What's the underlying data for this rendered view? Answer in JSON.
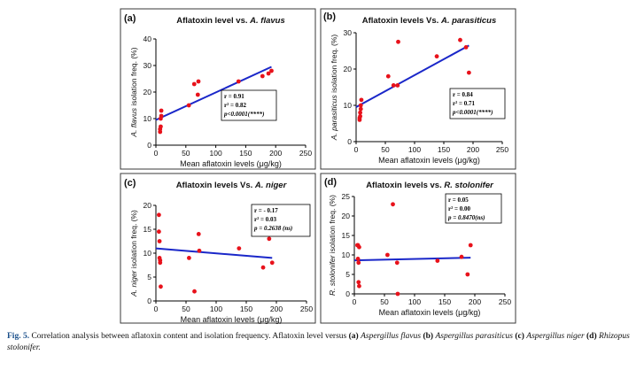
{
  "caption": {
    "label": "Fig. 5.",
    "text": "Correlation analysis between aflatoxin content and isolation frequency. Aflatoxin level versus",
    "part_a_letter": "(a)",
    "part_a_species": "Aspergillus flavus",
    "part_b_letter": "(b)",
    "part_b_species": "Aspergillus parasiticus",
    "part_c_letter": "(c)",
    "part_c_species": "Aspergillus niger",
    "part_d_letter": "(d)",
    "part_d_species": "Rhizopus stolonifer."
  },
  "colors": {
    "points": "#e8121b",
    "trendline": "#1a27c9",
    "frame": "#3a3a3a"
  },
  "chart_data": [
    {
      "type": "scatter",
      "panel": "(a)",
      "title": "Aflatoxin level vs. A. flavus",
      "title_plain": "Aflatoxin level vs. ",
      "title_species": "A. flavus",
      "xlabel": "Mean aflatoxin levels  (μg/kg)",
      "ylabel": "A. flavus isolation freq. (%)",
      "ylabel_species": "A. flavus",
      "ylabel_rest": " isolation freq. (%)",
      "xlim": [
        0,
        250
      ],
      "ylim": [
        0,
        40
      ],
      "xticks": [
        0,
        50,
        100,
        150,
        200,
        250
      ],
      "yticks": [
        0,
        10,
        20,
        30,
        40
      ],
      "x": [
        7,
        7,
        8,
        8,
        9,
        9,
        55,
        64,
        70,
        71,
        138,
        178,
        188,
        193
      ],
      "y": [
        5,
        6,
        7,
        10,
        11,
        13,
        15,
        23,
        19,
        24,
        24,
        26,
        27,
        28
      ],
      "trendline": {
        "x": [
          0,
          193
        ],
        "y": [
          9.5,
          29.5
        ]
      },
      "stats": [
        "r = 0.91",
        "r² = 0.82",
        "p<0.0001(****)"
      ]
    },
    {
      "type": "scatter",
      "panel": "(b)",
      "title": "Aflatoxin levels Vs. A. parasiticus",
      "title_plain": "Aflatoxin levels Vs. ",
      "title_species": "A. parasiticus",
      "xlabel": "Mean aflatoxin levels (μg/kg)",
      "ylabel": "A. parasiticus isolation freq. (%)",
      "ylabel_species": "A. parasiticus",
      "ylabel_rest": " isolation freq. (%)",
      "xlim": [
        0,
        250
      ],
      "ylim": [
        0,
        30
      ],
      "xticks": [
        0,
        50,
        100,
        150,
        200,
        250
      ],
      "yticks": [
        0,
        10,
        20,
        30
      ],
      "x": [
        6,
        6,
        7,
        7,
        8,
        8,
        9,
        55,
        64,
        71,
        72,
        138,
        178,
        188,
        193
      ],
      "y": [
        6,
        6.5,
        7,
        8,
        9,
        10,
        11.5,
        18,
        15.5,
        15.5,
        27.5,
        23.5,
        28,
        26,
        19
      ],
      "trendline": {
        "x": [
          0,
          193
        ],
        "y": [
          9.5,
          26.5
        ]
      },
      "stats": [
        "r = 0.84",
        "r² = 0.71",
        "p<0.0001(****)"
      ]
    },
    {
      "type": "scatter",
      "panel": "(c)",
      "title": "Aflatoxin levels Vs. A. niger",
      "title_plain": "Aflatoxin levels Vs. ",
      "title_species": "A. niger",
      "xlabel": "Mean aflatoxin levels (μg/kg)",
      "ylabel": "A. niger isolation freq. (%)",
      "ylabel_species": "A. niger",
      "ylabel_rest": " isolation freq. (%)",
      "xlim": [
        0,
        250
      ],
      "ylim": [
        0,
        20
      ],
      "xticks": [
        0,
        50,
        100,
        150,
        200,
        250
      ],
      "yticks": [
        0,
        5,
        10,
        15,
        20
      ],
      "x": [
        5,
        5,
        6,
        6,
        7,
        7,
        8,
        55,
        64,
        71,
        72,
        138,
        178,
        188,
        193
      ],
      "y": [
        18,
        14.5,
        12.5,
        9,
        8.5,
        8,
        3,
        9,
        2,
        14,
        10.5,
        11,
        7,
        13,
        8
      ],
      "trendline": {
        "x": [
          0,
          193
        ],
        "y": [
          11,
          9
        ]
      },
      "stats": [
        "r = - 0.17",
        "r² = 0.03",
        "p = 0.2638 (ns)"
      ]
    },
    {
      "type": "scatter",
      "panel": "(d)",
      "title": "Aflatoxin levels vs. R. stolonifer",
      "title_plain": "Aflatoxin levels vs. ",
      "title_species": "R. stolonifer",
      "xlabel": "Mean aflatoxin levels  (μg/kg)",
      "ylabel": "R. stolonifer isolation freq. (%)",
      "ylabel_species": "R. stolonifer",
      "ylabel_rest": " isolation freq. (%)",
      "xlim": [
        0,
        250
      ],
      "ylim": [
        0,
        25
      ],
      "xticks": [
        0,
        50,
        100,
        150,
        200,
        250
      ],
      "yticks": [
        0,
        5,
        10,
        15,
        20,
        25
      ],
      "x": [
        5,
        6,
        6,
        7,
        7,
        8,
        8,
        55,
        64,
        71,
        72,
        138,
        178,
        188,
        193
      ],
      "y": [
        12.5,
        12.5,
        9,
        8,
        3,
        2,
        12,
        10,
        23,
        8,
        0,
        8.5,
        9.5,
        5,
        12.5
      ],
      "trendline": {
        "x": [
          0,
          193
        ],
        "y": [
          8.6,
          9.3
        ]
      },
      "stats": [
        "r = 0.05",
        "r² = 0.00",
        "p = 0.8470(ns)"
      ]
    }
  ]
}
